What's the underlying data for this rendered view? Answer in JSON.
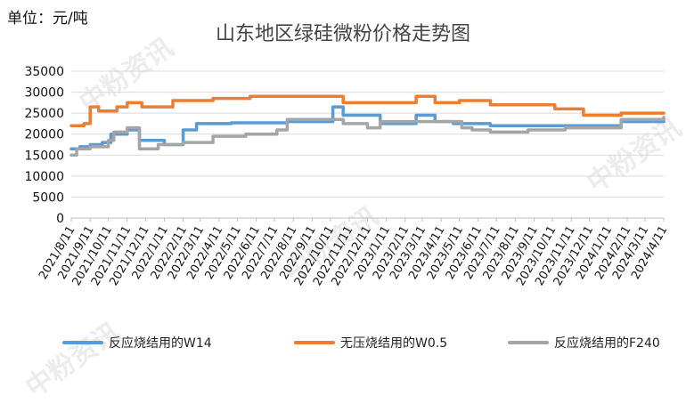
{
  "unit_label": "单位：元/吨",
  "watermark": "中粉资讯",
  "chart_data": {
    "type": "line",
    "title": "山东地区绿硅微粉价格走势图",
    "ylim": [
      0,
      35000
    ],
    "y_ticks": [
      0,
      5000,
      10000,
      15000,
      20000,
      25000,
      30000,
      35000
    ],
    "x_range": [
      "2021/8/11",
      "2024/4/11"
    ],
    "x_ticks": [
      "2021/8/11",
      "2021/9/11",
      "2021/10/11",
      "2021/11/11",
      "2021/12/11",
      "2022/1/11",
      "2022/2/11",
      "2022/3/11",
      "2022/4/11",
      "2022/5/11",
      "2022/6/11",
      "2022/7/11",
      "2022/8/11",
      "2022/9/11",
      "2022/10/11",
      "2022/11/11",
      "2022/12/11",
      "2023/1/11",
      "2023/2/11",
      "2023/3/11",
      "2023/4/11",
      "2023/5/11",
      "2023/6/11",
      "2023/7/11",
      "2023/8/11",
      "2023/9/11",
      "2023/10/11",
      "2023/11/11",
      "2023/12/11",
      "2024/1/11",
      "2024/2/11",
      "2024/3/11",
      "2024/4/11"
    ],
    "grid": "horizontal",
    "legend_position": "bottom",
    "step": true,
    "series": [
      {
        "name": "反应烧结用的W14",
        "color": "#5b9bd5",
        "points": [
          [
            "2021/8/11",
            16500
          ],
          [
            "2021/8/25",
            17000
          ],
          [
            "2021/9/11",
            17500
          ],
          [
            "2021/10/1",
            18000
          ],
          [
            "2021/10/15",
            20000
          ],
          [
            "2021/11/11",
            21000
          ],
          [
            "2021/12/1",
            18500
          ],
          [
            "2022/1/11",
            17500
          ],
          [
            "2022/2/11",
            21000
          ],
          [
            "2022/3/5",
            22500
          ],
          [
            "2022/5/1",
            22700
          ],
          [
            "2022/8/1",
            23000
          ],
          [
            "2022/10/15",
            26500
          ],
          [
            "2022/11/1",
            24500
          ],
          [
            "2023/1/1",
            22500
          ],
          [
            "2023/3/1",
            24500
          ],
          [
            "2023/4/1",
            23000
          ],
          [
            "2023/5/1",
            22500
          ],
          [
            "2023/7/1",
            22000
          ],
          [
            "2024/2/1",
            23000
          ],
          [
            "2024/4/11",
            23000
          ]
        ]
      },
      {
        "name": "无压烧结用的W0.5",
        "color": "#ed7d31",
        "points": [
          [
            "2021/8/11",
            22000
          ],
          [
            "2021/9/1",
            22500
          ],
          [
            "2021/9/11",
            26500
          ],
          [
            "2021/9/25",
            25500
          ],
          [
            "2021/10/25",
            26500
          ],
          [
            "2021/11/11",
            27500
          ],
          [
            "2021/12/5",
            26500
          ],
          [
            "2022/1/25",
            28000
          ],
          [
            "2022/4/1",
            28500
          ],
          [
            "2022/6/1",
            29000
          ],
          [
            "2022/11/1",
            27500
          ],
          [
            "2023/3/1",
            29000
          ],
          [
            "2023/4/1",
            27500
          ],
          [
            "2023/5/11",
            28000
          ],
          [
            "2023/7/1",
            27000
          ],
          [
            "2023/10/15",
            26000
          ],
          [
            "2023/12/1",
            24500
          ],
          [
            "2024/2/1",
            25000
          ],
          [
            "2024/4/11",
            25000
          ]
        ]
      },
      {
        "name": "反应烧结用的F240",
        "color": "#a5a5a5",
        "points": [
          [
            "2021/8/11",
            15000
          ],
          [
            "2021/8/20",
            16500
          ],
          [
            "2021/9/11",
            17000
          ],
          [
            "2021/10/11",
            18500
          ],
          [
            "2021/10/20",
            20500
          ],
          [
            "2021/11/11",
            21500
          ],
          [
            "2021/12/1",
            16500
          ],
          [
            "2022/1/1",
            17500
          ],
          [
            "2022/2/11",
            18000
          ],
          [
            "2022/4/1",
            19500
          ],
          [
            "2022/5/25",
            20000
          ],
          [
            "2022/7/15",
            21000
          ],
          [
            "2022/8/1",
            23500
          ],
          [
            "2022/11/1",
            22500
          ],
          [
            "2022/12/11",
            21500
          ],
          [
            "2023/1/1",
            23000
          ],
          [
            "2023/4/15",
            23000
          ],
          [
            "2023/5/15",
            21500
          ],
          [
            "2023/6/1",
            21000
          ],
          [
            "2023/7/1",
            20500
          ],
          [
            "2023/9/1",
            21000
          ],
          [
            "2023/11/1",
            21500
          ],
          [
            "2024/2/1",
            23500
          ],
          [
            "2024/4/11",
            24000
          ]
        ]
      }
    ]
  }
}
